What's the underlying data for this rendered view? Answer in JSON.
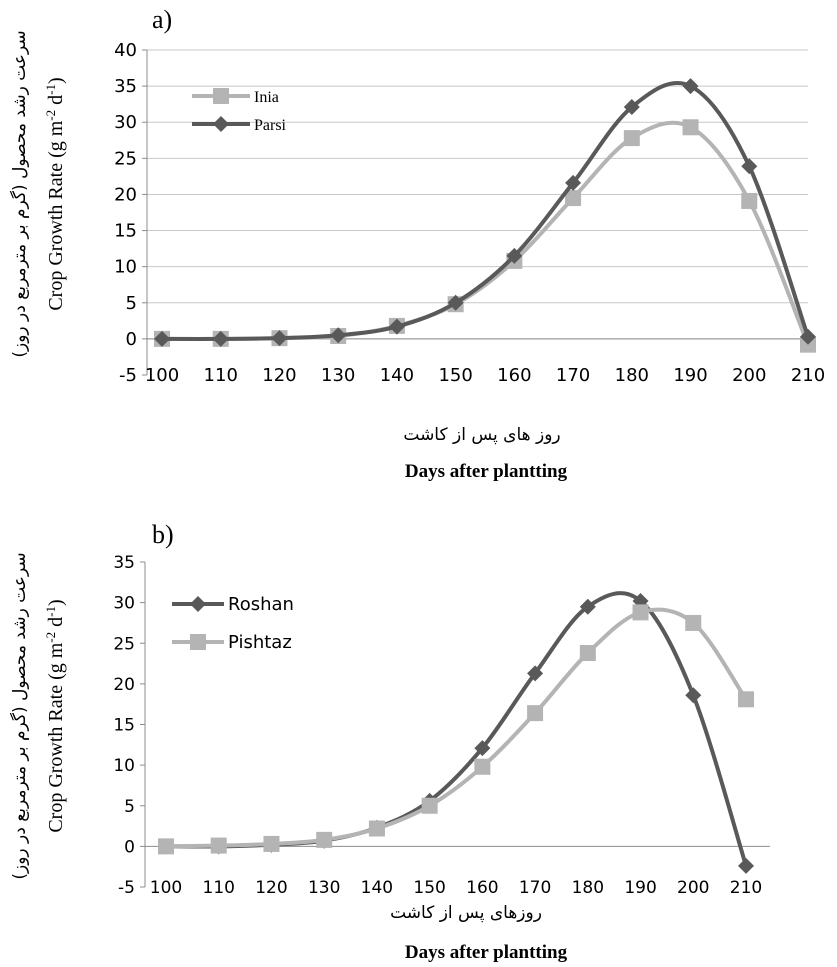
{
  "chart_data": [
    {
      "type": "line",
      "panel_label": "a)",
      "ylabel": "Crop Growth Rate (g m-2 d-1)",
      "ylabel_parts": {
        "main": "Crop Growth Rate (g m",
        "exp1": "-2",
        "mid": " d",
        "exp2": "-1",
        "end": ")"
      },
      "ylabel_fa": "سرعت رشد محصول (گرم بر مترمربع در روز)",
      "xlabel_fa": "روز های پس از کاشت",
      "xlabel": "Days after plantting",
      "ylim": [
        -5,
        40
      ],
      "yticks": [
        -5,
        0,
        5,
        10,
        15,
        20,
        25,
        30,
        35,
        40
      ],
      "categories": [
        "100",
        "110",
        "120",
        "130",
        "140",
        "150",
        "160",
        "170",
        "180",
        "190",
        "200",
        "210"
      ],
      "grid": true,
      "legend_position": "top-left",
      "series": [
        {
          "name": "Inia",
          "color": "#b4b4b4",
          "marker": "square",
          "values": [
            0,
            0,
            0.1,
            0.4,
            1.8,
            4.8,
            10.8,
            19.5,
            27.8,
            29.3,
            19.1,
            -0.8
          ]
        },
        {
          "name": "Parsi",
          "color": "#595959",
          "marker": "diamond",
          "values": [
            0,
            0,
            0.1,
            0.5,
            1.7,
            5.0,
            11.5,
            21.6,
            32.1,
            35.0,
            23.9,
            0.3
          ]
        }
      ]
    },
    {
      "type": "line",
      "panel_label": "b)",
      "ylabel": "Crop Growth Rate (g m-2 d-1)",
      "ylabel_parts": {
        "main": "Crop Growth Rate (g m",
        "exp1": "-2",
        "mid": " d",
        "exp2": "-1",
        "end": ")"
      },
      "ylabel_fa": "سرعت رشد محصول (گرم بر مترمربع در روز)",
      "xlabel_fa": "روزهای پس از کاشت",
      "xlabel": "Days after plantting",
      "ylim": [
        -5,
        35
      ],
      "yticks": [
        -5,
        0,
        5,
        10,
        15,
        20,
        25,
        30,
        35
      ],
      "categories": [
        "100",
        "110",
        "120",
        "130",
        "140",
        "150",
        "160",
        "170",
        "180",
        "190",
        "200",
        "210"
      ],
      "grid": false,
      "legend_position": "top-left",
      "series": [
        {
          "name": "Roshan",
          "color": "#595959",
          "marker": "diamond",
          "values": [
            0,
            0,
            0.2,
            0.7,
            2.3,
            5.6,
            12.1,
            21.3,
            29.5,
            30.2,
            18.6,
            -2.4
          ]
        },
        {
          "name": "Pishtaz",
          "color": "#b4b4b4",
          "marker": "square",
          "values": [
            0,
            0.1,
            0.3,
            0.8,
            2.2,
            5.0,
            9.8,
            16.4,
            23.8,
            28.8,
            27.5,
            18.1
          ]
        }
      ]
    }
  ]
}
